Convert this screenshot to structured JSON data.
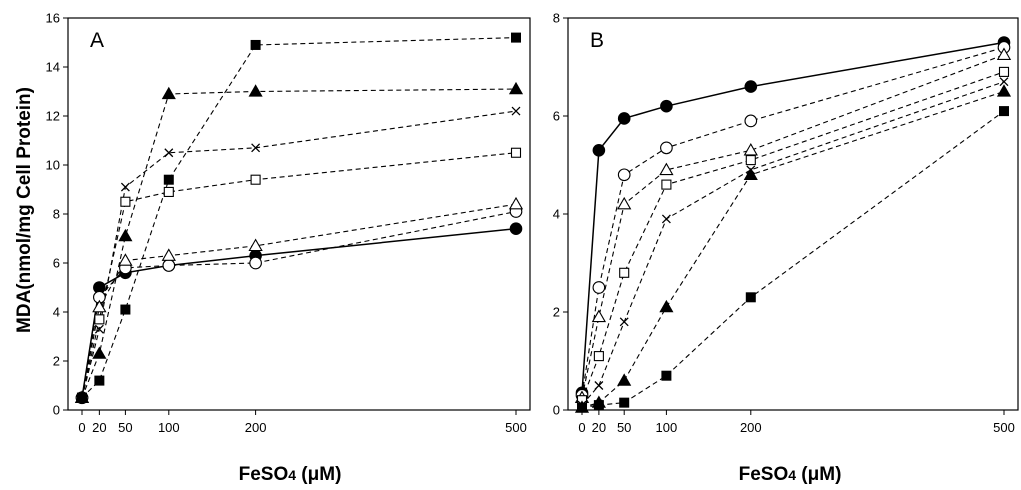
{
  "figure": {
    "ylabel": "MDA(nmol/mg Cell Protein)",
    "xlabel_main": "FeSO",
    "xlabel_sub": "4",
    "xlabel_unit": " (μM)"
  },
  "chart_data": [
    {
      "type": "line",
      "panel_label": "A",
      "xlabel": "FeSO4 (μM)",
      "ylabel": "MDA(nmol/mg Cell Protein)",
      "x": [
        0,
        20,
        50,
        100,
        200,
        500
      ],
      "xticks": [
        0,
        20,
        50,
        100,
        200,
        500
      ],
      "ylim": [
        0,
        16
      ],
      "yticks": [
        0,
        2,
        4,
        6,
        8,
        10,
        12,
        14,
        16
      ],
      "grid": false,
      "series": [
        {
          "marker": "circle-filled",
          "line": "solid",
          "values": [
            0.5,
            5.0,
            5.6,
            5.9,
            6.3,
            7.4
          ]
        },
        {
          "marker": "circle-open",
          "line": "dashed",
          "values": [
            0.5,
            4.6,
            5.8,
            5.9,
            6.0,
            8.1
          ]
        },
        {
          "marker": "triangle-open",
          "line": "dashed",
          "values": [
            0.5,
            4.2,
            6.1,
            6.3,
            6.7,
            8.4
          ]
        },
        {
          "marker": "square-open",
          "line": "dashed",
          "values": [
            0.5,
            3.7,
            8.5,
            8.9,
            9.4,
            10.5
          ]
        },
        {
          "marker": "cross",
          "line": "dashed",
          "values": [
            0.5,
            3.3,
            9.1,
            10.5,
            10.7,
            12.2
          ]
        },
        {
          "marker": "triangle-filled",
          "line": "dashed",
          "values": [
            0.5,
            2.3,
            7.1,
            12.9,
            13.0,
            13.1
          ]
        },
        {
          "marker": "square-filled",
          "line": "dashed",
          "values": [
            0.5,
            1.2,
            4.1,
            9.4,
            14.9,
            15.2
          ]
        }
      ]
    },
    {
      "type": "line",
      "panel_label": "B",
      "xlabel": "FeSO4 (μM)",
      "ylabel": "",
      "x": [
        0,
        20,
        50,
        100,
        200,
        500
      ],
      "xticks": [
        0,
        20,
        50,
        100,
        200,
        500
      ],
      "ylim": [
        0,
        8
      ],
      "yticks": [
        0,
        2,
        4,
        6,
        8
      ],
      "grid": false,
      "series": [
        {
          "marker": "circle-filled",
          "line": "solid",
          "values": [
            0.35,
            5.3,
            5.95,
            6.2,
            6.6,
            7.5
          ]
        },
        {
          "marker": "circle-open",
          "line": "dashed",
          "values": [
            0.3,
            2.5,
            4.8,
            5.35,
            5.9,
            7.4
          ]
        },
        {
          "marker": "triangle-open",
          "line": "dashed",
          "values": [
            0.25,
            1.9,
            4.2,
            4.9,
            5.3,
            7.25
          ]
        },
        {
          "marker": "square-open",
          "line": "dashed",
          "values": [
            0.2,
            1.1,
            2.8,
            4.6,
            5.1,
            6.9
          ]
        },
        {
          "marker": "cross",
          "line": "dashed",
          "values": [
            0.1,
            0.5,
            1.8,
            3.9,
            4.9,
            6.7
          ]
        },
        {
          "marker": "triangle-filled",
          "line": "dashed",
          "values": [
            0.05,
            0.15,
            0.6,
            2.1,
            4.8,
            6.5
          ]
        },
        {
          "marker": "square-filled",
          "line": "dashed",
          "values": [
            0.05,
            0.1,
            0.15,
            0.7,
            2.3,
            6.1
          ]
        }
      ]
    }
  ]
}
